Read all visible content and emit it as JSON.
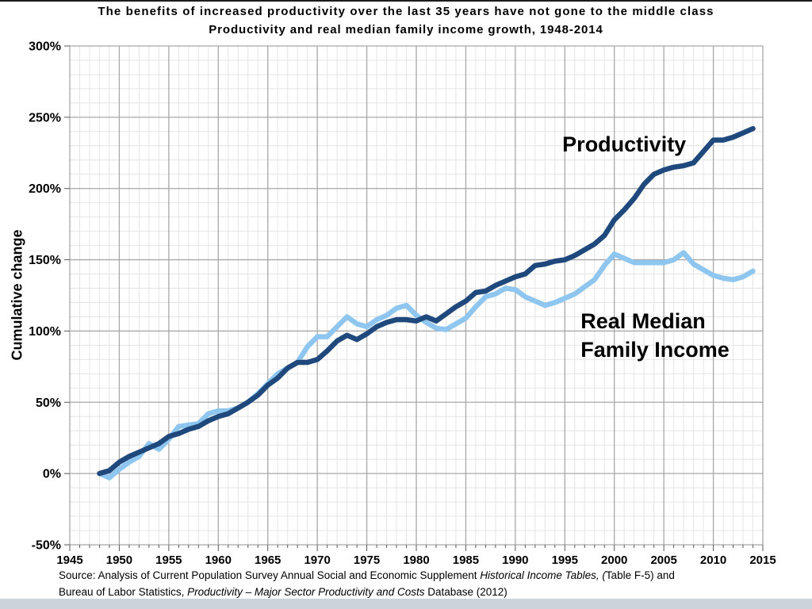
{
  "title": {
    "line1": "The benefits of increased productivity over the last 35 years have not gone to the middle class",
    "line2": "Productivity and real median family income growth, 1948-2014"
  },
  "y_axis_title": "Cumulative change",
  "source": {
    "line1_regular": "Source:  Analysis of Current Population Survey Annual Social and Economic Supplement ",
    "line1_italic": "Historical Income Tables, (",
    "line1_end": "Table F-5) and",
    "line2_regular": "Bureau of Labor Statistics, ",
    "line2_italic": "Productivity – Major Sector Productivity and Costs",
    "line2_end": " Database (2012)"
  },
  "chart_data": {
    "type": "line",
    "title": "Productivity and real median family income growth, 1948-2014",
    "xlabel": "",
    "ylabel": "Cumulative change",
    "xlim": [
      1945,
      2015
    ],
    "ylim": [
      -50,
      300
    ],
    "x_ticks": [
      1945,
      1950,
      1955,
      1960,
      1965,
      1970,
      1975,
      1980,
      1985,
      1990,
      1995,
      2000,
      2005,
      2010,
      2015
    ],
    "y_ticks": [
      -50,
      0,
      50,
      100,
      150,
      200,
      250,
      300
    ],
    "y_tick_suffix": "%",
    "grid": {
      "minor_x_step": 1,
      "minor_y_step": 10,
      "major_x_step": 5,
      "major_y_step": 50,
      "on": true
    },
    "legend_position": "inline-annotations",
    "colors": {
      "productivity": "#1F497D",
      "income": "#8EC6F0",
      "grid_minor": "#E4E4E4",
      "grid_major": "#A8A8A8",
      "axis": "#595959",
      "text": "#000000"
    },
    "x": [
      1948,
      1949,
      1950,
      1951,
      1952,
      1953,
      1954,
      1955,
      1956,
      1957,
      1958,
      1959,
      1960,
      1961,
      1962,
      1963,
      1964,
      1965,
      1966,
      1967,
      1968,
      1969,
      1970,
      1971,
      1972,
      1973,
      1974,
      1975,
      1976,
      1977,
      1978,
      1979,
      1980,
      1981,
      1982,
      1983,
      1984,
      1985,
      1986,
      1987,
      1988,
      1989,
      1990,
      1991,
      1992,
      1993,
      1994,
      1995,
      1996,
      1997,
      1998,
      1999,
      2000,
      2001,
      2002,
      2003,
      2004,
      2005,
      2006,
      2007,
      2008,
      2009,
      2010,
      2011,
      2012,
      2013,
      2014
    ],
    "series": [
      {
        "id": "productivity-line",
        "name": "Productivity",
        "color": "#1F497D",
        "values": [
          0,
          2,
          8,
          12,
          15,
          18,
          21,
          26,
          28,
          31,
          33,
          37,
          40,
          42,
          46,
          50,
          55,
          62,
          67,
          74,
          78,
          78,
          80,
          86,
          93,
          97,
          94,
          98,
          103,
          106,
          108,
          108,
          107,
          110,
          107,
          112,
          117,
          121,
          127,
          128,
          132,
          135,
          138,
          140,
          146,
          147,
          149,
          150,
          153,
          157,
          161,
          167,
          178,
          185,
          193,
          203,
          210,
          213,
          215,
          216,
          218,
          226,
          234,
          234,
          236,
          239,
          242
        ]
      },
      {
        "id": "income-line",
        "name": "Real Median Family Income",
        "color": "#8EC6F0",
        "values": [
          0,
          -3,
          3,
          8,
          12,
          21,
          17,
          24,
          33,
          34,
          35,
          42,
          44,
          44,
          46,
          50,
          56,
          63,
          70,
          74,
          78,
          89,
          96,
          96,
          103,
          110,
          105,
          103,
          108,
          111,
          116,
          118,
          111,
          106,
          102,
          101,
          105,
          109,
          117,
          124,
          126,
          130,
          129,
          124,
          121,
          118,
          120,
          123,
          126,
          131,
          136,
          146,
          154,
          151,
          148,
          148,
          148,
          148,
          150,
          155,
          147,
          143,
          139,
          137,
          136,
          138,
          142
        ]
      }
    ],
    "annotations": [
      {
        "id": "productivity-label",
        "text": "Productivity",
        "x": 2001,
        "y": 226,
        "anchor": "middle",
        "size": 27
      },
      {
        "id": "income-label-line1",
        "text": "Real Median",
        "x": 1996.6,
        "y": 102,
        "anchor": "start",
        "size": 27
      },
      {
        "id": "income-label-line2",
        "text": "Family Income",
        "x": 1996.6,
        "y": 82,
        "anchor": "start",
        "size": 27
      }
    ]
  }
}
